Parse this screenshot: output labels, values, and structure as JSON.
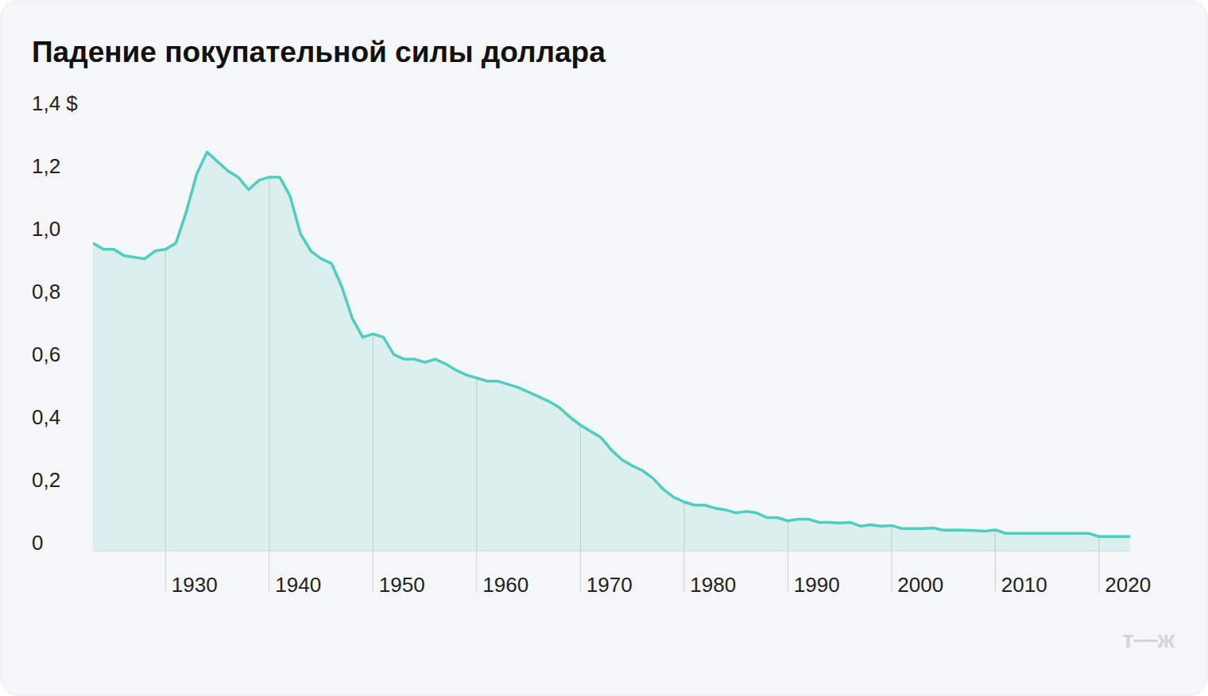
{
  "chart_data": {
    "type": "area",
    "title": "Падение покупательной силы доллара",
    "x": [
      1923,
      1924,
      1925,
      1926,
      1927,
      1928,
      1929,
      1930,
      1931,
      1932,
      1933,
      1934,
      1935,
      1936,
      1937,
      1938,
      1939,
      1940,
      1941,
      1942,
      1943,
      1944,
      1945,
      1946,
      1947,
      1948,
      1949,
      1950,
      1951,
      1952,
      1953,
      1954,
      1955,
      1956,
      1957,
      1958,
      1959,
      1960,
      1961,
      1962,
      1963,
      1964,
      1965,
      1966,
      1967,
      1968,
      1969,
      1970,
      1971,
      1972,
      1973,
      1974,
      1975,
      1976,
      1977,
      1978,
      1979,
      1980,
      1981,
      1982,
      1983,
      1984,
      1985,
      1986,
      1987,
      1988,
      1989,
      1990,
      1991,
      1992,
      1993,
      1994,
      1995,
      1996,
      1997,
      1998,
      1999,
      2000,
      2001,
      2002,
      2003,
      2004,
      2005,
      2006,
      2007,
      2008,
      2009,
      2010,
      2011,
      2012,
      2013,
      2014,
      2015,
      2016,
      2017,
      2018,
      2019,
      2020,
      2021,
      2022,
      2023
    ],
    "values": [
      0.98,
      0.96,
      0.96,
      0.94,
      0.935,
      0.93,
      0.955,
      0.96,
      0.98,
      1.08,
      1.2,
      1.27,
      1.24,
      1.21,
      1.19,
      1.15,
      1.18,
      1.19,
      1.19,
      1.13,
      1.01,
      0.955,
      0.93,
      0.915,
      0.84,
      0.74,
      0.68,
      0.69,
      0.68,
      0.625,
      0.61,
      0.61,
      0.6,
      0.61,
      0.595,
      0.575,
      0.56,
      0.55,
      0.54,
      0.54,
      0.53,
      0.52,
      0.505,
      0.49,
      0.475,
      0.455,
      0.425,
      0.4,
      0.38,
      0.36,
      0.32,
      0.29,
      0.27,
      0.255,
      0.23,
      0.195,
      0.17,
      0.155,
      0.145,
      0.145,
      0.135,
      0.13,
      0.12,
      0.125,
      0.12,
      0.105,
      0.105,
      0.095,
      0.1,
      0.1,
      0.09,
      0.09,
      0.088,
      0.09,
      0.078,
      0.082,
      0.078,
      0.08,
      0.07,
      0.07,
      0.07,
      0.072,
      0.065,
      0.066,
      0.065,
      0.064,
      0.062,
      0.066,
      0.055,
      0.055,
      0.055,
      0.055,
      0.055,
      0.055,
      0.055,
      0.055,
      0.055,
      0.045,
      0.045,
      0.045,
      0.045
    ],
    "color": "#4fcdc1",
    "xlim": [
      1923,
      2023
    ],
    "xticks": [
      1930,
      1940,
      1950,
      1960,
      1970,
      1980,
      1990,
      2000,
      2010,
      2020
    ],
    "ylim": [
      0,
      1.4
    ],
    "yticks": [
      0,
      {
        "value": 0.2,
        "label": "0,2"
      },
      {
        "value": 0.4,
        "label": "0,4"
      },
      {
        "value": 0.6,
        "label": "0,6"
      },
      {
        "value": 0.8,
        "label": "0,8"
      },
      {
        "value": 1.0,
        "label": "1,0"
      },
      {
        "value": 1.2,
        "label": "1,2"
      },
      {
        "value": 1.4,
        "label": "1,4 $"
      }
    ],
    "grid": true
  },
  "logo": "т—ж"
}
